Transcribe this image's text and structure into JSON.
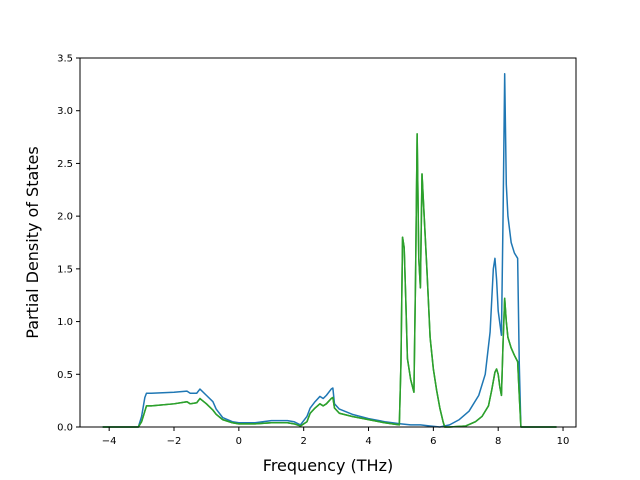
{
  "chart_data": {
    "type": "line",
    "title": "",
    "xlabel": "Frequency (THz)",
    "ylabel": "Partial Density of States",
    "xlim": [
      -4.9,
      10.4
    ],
    "ylim": [
      0,
      3.5
    ],
    "xticks": [
      -4,
      -2,
      0,
      2,
      4,
      6,
      8,
      10
    ],
    "xtick_labels": [
      "−4",
      "−2",
      "0",
      "2",
      "4",
      "6",
      "8",
      "10"
    ],
    "yticks": [
      0.0,
      0.5,
      1.0,
      1.5,
      2.0,
      2.5,
      3.0,
      3.5
    ],
    "ytick_labels": [
      "0.0",
      "0.5",
      "1.0",
      "1.5",
      "2.0",
      "2.5",
      "3.0",
      "3.5"
    ],
    "grid": false,
    "legend": false,
    "series": [
      {
        "color": "#1f77b4",
        "x": [
          -4.2,
          -3.1,
          -3.0,
          -2.9,
          -2.85,
          -2.7,
          -2.0,
          -1.6,
          -1.5,
          -1.3,
          -1.2,
          -1.0,
          -0.8,
          -0.7,
          -0.5,
          -0.2,
          0.0,
          0.5,
          1.0,
          1.5,
          1.7,
          1.9,
          2.1,
          2.2,
          2.35,
          2.5,
          2.6,
          2.7,
          2.85,
          2.9,
          2.95,
          3.1,
          3.5,
          4.0,
          4.5,
          5.0,
          5.3,
          5.6,
          5.9,
          6.2,
          6.5,
          6.8,
          7.1,
          7.4,
          7.6,
          7.75,
          7.85,
          7.9,
          7.95,
          8.0,
          8.1,
          8.15,
          8.2,
          8.25,
          8.3,
          8.4,
          8.5,
          8.6,
          8.65,
          8.7,
          9.0,
          9.8
        ],
        "y": [
          0.0,
          0.0,
          0.1,
          0.28,
          0.32,
          0.32,
          0.33,
          0.34,
          0.32,
          0.32,
          0.36,
          0.3,
          0.24,
          0.17,
          0.09,
          0.05,
          0.04,
          0.04,
          0.06,
          0.06,
          0.05,
          0.02,
          0.1,
          0.18,
          0.24,
          0.29,
          0.27,
          0.3,
          0.36,
          0.37,
          0.22,
          0.17,
          0.12,
          0.08,
          0.05,
          0.03,
          0.02,
          0.02,
          0.01,
          0.0,
          0.02,
          0.07,
          0.15,
          0.3,
          0.5,
          0.9,
          1.5,
          1.6,
          1.4,
          1.1,
          0.87,
          2.0,
          3.35,
          2.3,
          2.0,
          1.75,
          1.65,
          1.6,
          0.6,
          0.0,
          0.0,
          0.0
        ]
      },
      {
        "color": "#2ca02c",
        "x": [
          -4.2,
          -3.1,
          -3.0,
          -2.9,
          -2.85,
          -2.7,
          -2.0,
          -1.6,
          -1.5,
          -1.3,
          -1.2,
          -1.0,
          -0.8,
          -0.7,
          -0.5,
          -0.2,
          0.0,
          0.5,
          1.0,
          1.5,
          1.7,
          1.9,
          2.1,
          2.2,
          2.35,
          2.5,
          2.6,
          2.7,
          2.85,
          2.9,
          2.95,
          3.1,
          3.5,
          4.0,
          4.5,
          4.95,
          5.0,
          5.05,
          5.1,
          5.15,
          5.2,
          5.3,
          5.4,
          5.45,
          5.5,
          5.55,
          5.6,
          5.65,
          5.7,
          5.8,
          5.9,
          6.0,
          6.1,
          6.2,
          6.3,
          6.35,
          6.5,
          7.0,
          7.3,
          7.5,
          7.7,
          7.8,
          7.9,
          7.95,
          8.0,
          8.05,
          8.1,
          8.15,
          8.2,
          8.25,
          8.3,
          8.4,
          8.5,
          8.6,
          8.65,
          8.7,
          9.0,
          9.8
        ],
        "y": [
          0.0,
          0.0,
          0.05,
          0.15,
          0.2,
          0.2,
          0.22,
          0.24,
          0.22,
          0.23,
          0.27,
          0.22,
          0.16,
          0.12,
          0.07,
          0.04,
          0.03,
          0.03,
          0.04,
          0.04,
          0.03,
          0.01,
          0.05,
          0.13,
          0.18,
          0.22,
          0.2,
          0.22,
          0.27,
          0.28,
          0.18,
          0.13,
          0.1,
          0.07,
          0.04,
          0.02,
          0.6,
          1.8,
          1.7,
          1.2,
          0.65,
          0.45,
          0.33,
          1.4,
          2.78,
          1.6,
          1.32,
          2.4,
          2.1,
          1.5,
          0.85,
          0.55,
          0.35,
          0.18,
          0.05,
          0.0,
          0.0,
          0.01,
          0.05,
          0.1,
          0.2,
          0.35,
          0.52,
          0.55,
          0.5,
          0.38,
          0.3,
          0.8,
          1.22,
          1.0,
          0.85,
          0.75,
          0.68,
          0.62,
          0.3,
          0.0,
          0.0,
          0.0
        ]
      },
      {
        "color": "#2ca02c",
        "x": [
          -4.2,
          -3.1,
          -3.0,
          -2.9,
          -2.85,
          -2.7,
          -2.0,
          -1.6,
          -1.5,
          -1.3,
          -1.2,
          -1.0,
          -0.8,
          -0.7,
          -0.5,
          -0.2,
          0.0,
          0.5,
          1.0,
          1.5,
          1.7,
          1.9,
          2.1,
          2.2,
          2.35,
          2.5,
          2.6,
          2.7,
          2.85,
          2.9,
          2.95,
          3.1,
          3.5,
          4.0,
          4.5,
          4.95,
          5.0,
          5.05,
          5.1,
          5.15,
          5.2,
          5.3,
          5.4,
          5.45,
          5.5,
          5.55,
          5.6,
          5.65,
          5.7,
          5.8,
          5.9,
          6.0,
          6.1,
          6.2,
          6.3,
          6.35,
          6.5,
          7.0,
          7.3,
          7.5,
          7.7,
          7.8,
          7.9,
          7.95,
          8.0,
          8.05,
          8.1,
          8.15,
          8.2,
          8.25,
          8.3,
          8.4,
          8.5,
          8.6,
          8.65,
          8.7,
          9.0,
          9.8
        ],
        "y": [
          0.0,
          0.0,
          0.05,
          0.15,
          0.2,
          0.2,
          0.22,
          0.24,
          0.22,
          0.23,
          0.27,
          0.22,
          0.16,
          0.12,
          0.07,
          0.04,
          0.03,
          0.03,
          0.04,
          0.04,
          0.03,
          0.01,
          0.05,
          0.13,
          0.18,
          0.22,
          0.2,
          0.22,
          0.27,
          0.28,
          0.18,
          0.13,
          0.1,
          0.07,
          0.04,
          0.02,
          0.6,
          1.8,
          1.7,
          1.2,
          0.65,
          0.45,
          0.33,
          1.4,
          2.78,
          1.6,
          1.32,
          2.4,
          2.1,
          1.5,
          0.85,
          0.55,
          0.35,
          0.18,
          0.05,
          0.0,
          0.0,
          0.01,
          0.05,
          0.1,
          0.2,
          0.35,
          0.52,
          0.55,
          0.5,
          0.38,
          0.3,
          0.8,
          1.22,
          1.0,
          0.85,
          0.75,
          0.68,
          0.62,
          0.3,
          0.0,
          0.0,
          0.0
        ]
      }
    ]
  }
}
